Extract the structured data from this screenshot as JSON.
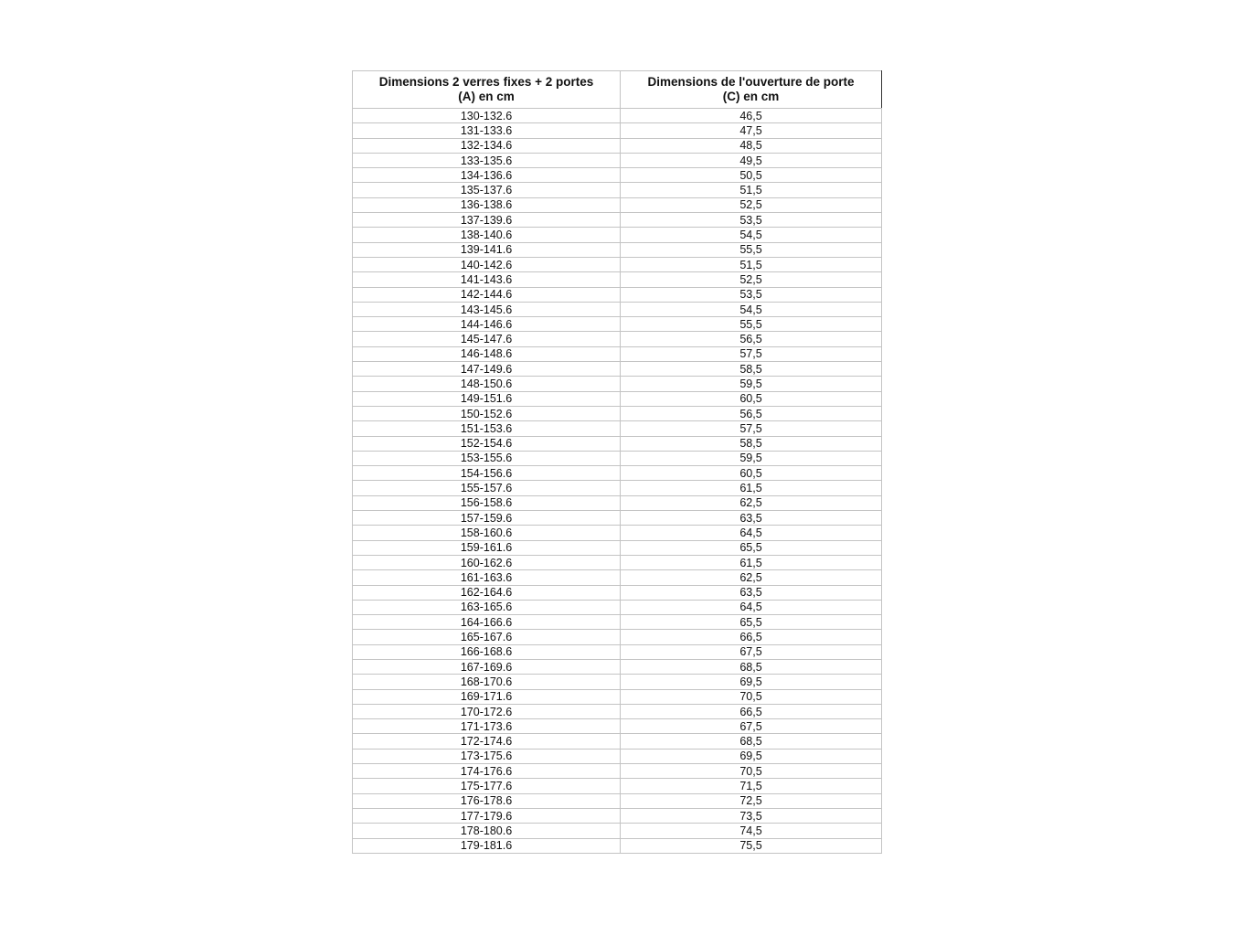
{
  "table": {
    "headers": [
      {
        "line1": "Dimensions 2 verres fixes + 2 portes",
        "line2": "(A) en cm"
      },
      {
        "line1": "Dimensions de l'ouverture de porte",
        "line2": "(C) en cm"
      }
    ],
    "rows": [
      [
        "130-132.6",
        "46,5"
      ],
      [
        "131-133.6",
        "47,5"
      ],
      [
        "132-134.6",
        "48,5"
      ],
      [
        "133-135.6",
        "49,5"
      ],
      [
        "134-136.6",
        "50,5"
      ],
      [
        "135-137.6",
        "51,5"
      ],
      [
        "136-138.6",
        "52,5"
      ],
      [
        "137-139.6",
        "53,5"
      ],
      [
        "138-140.6",
        "54,5"
      ],
      [
        "139-141.6",
        "55,5"
      ],
      [
        "140-142.6",
        "51,5"
      ],
      [
        "141-143.6",
        "52,5"
      ],
      [
        "142-144.6",
        "53,5"
      ],
      [
        "143-145.6",
        "54,5"
      ],
      [
        "144-146.6",
        "55,5"
      ],
      [
        "145-147.6",
        "56,5"
      ],
      [
        "146-148.6",
        "57,5"
      ],
      [
        "147-149.6",
        "58,5"
      ],
      [
        "148-150.6",
        "59,5"
      ],
      [
        "149-151.6",
        "60,5"
      ],
      [
        "150-152.6",
        "56,5"
      ],
      [
        "151-153.6",
        "57,5"
      ],
      [
        "152-154.6",
        "58,5"
      ],
      [
        "153-155.6",
        "59,5"
      ],
      [
        "154-156.6",
        "60,5"
      ],
      [
        "155-157.6",
        "61,5"
      ],
      [
        "156-158.6",
        "62,5"
      ],
      [
        "157-159.6",
        "63,5"
      ],
      [
        "158-160.6",
        "64,5"
      ],
      [
        "159-161.6",
        "65,5"
      ],
      [
        "160-162.6",
        "61,5"
      ],
      [
        "161-163.6",
        "62,5"
      ],
      [
        "162-164.6",
        "63,5"
      ],
      [
        "163-165.6",
        "64,5"
      ],
      [
        "164-166.6",
        "65,5"
      ],
      [
        "165-167.6",
        "66,5"
      ],
      [
        "166-168.6",
        "67,5"
      ],
      [
        "167-169.6",
        "68,5"
      ],
      [
        "168-170.6",
        "69,5"
      ],
      [
        "169-171.6",
        "70,5"
      ],
      [
        "170-172.6",
        "66,5"
      ],
      [
        "171-173.6",
        "67,5"
      ],
      [
        "172-174.6",
        "68,5"
      ],
      [
        "173-175.6",
        "69,5"
      ],
      [
        "174-176.6",
        "70,5"
      ],
      [
        "175-177.6",
        "71,5"
      ],
      [
        "176-178.6",
        "72,5"
      ],
      [
        "177-179.6",
        "73,5"
      ],
      [
        "178-180.6",
        "74,5"
      ],
      [
        "179-181.6",
        "75,5"
      ]
    ]
  }
}
